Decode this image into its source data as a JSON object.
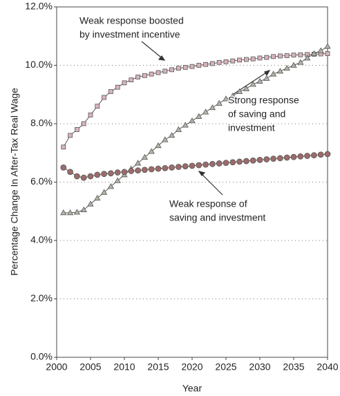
{
  "chart_data": {
    "type": "line",
    "y_label": "Percentage Change In After-Tax Real Wage",
    "x_label": "Year",
    "x": [
      2001,
      2002,
      2003,
      2004,
      2005,
      2006,
      2007,
      2008,
      2009,
      2010,
      2011,
      2012,
      2013,
      2014,
      2015,
      2016,
      2017,
      2018,
      2019,
      2020,
      2021,
      2022,
      2023,
      2024,
      2025,
      2026,
      2027,
      2028,
      2029,
      2030,
      2031,
      2032,
      2033,
      2034,
      2035,
      2036,
      2037,
      2038,
      2039,
      2040
    ],
    "series": [
      {
        "color": "#d9b3bb",
        "marker": "square",
        "values": [
          7.2,
          7.6,
          7.8,
          8.0,
          8.3,
          8.6,
          8.9,
          9.1,
          9.25,
          9.4,
          9.5,
          9.6,
          9.65,
          9.7,
          9.75,
          9.8,
          9.85,
          9.9,
          9.93,
          9.96,
          10.0,
          10.03,
          10.06,
          10.1,
          10.12,
          10.15,
          10.18,
          10.2,
          10.22,
          10.25,
          10.27,
          10.3,
          10.32,
          10.33,
          10.35,
          10.36,
          10.37,
          10.38,
          10.39,
          10.4
        ]
      },
      {
        "color": "#b3b3a8",
        "marker": "triangle",
        "values": [
          4.95,
          4.95,
          4.97,
          5.05,
          5.25,
          5.45,
          5.65,
          5.85,
          6.05,
          6.25,
          6.45,
          6.65,
          6.85,
          7.05,
          7.25,
          7.45,
          7.6,
          7.8,
          7.95,
          8.1,
          8.25,
          8.4,
          8.55,
          8.7,
          8.85,
          8.95,
          9.1,
          9.2,
          9.35,
          9.45,
          9.55,
          9.7,
          9.8,
          9.9,
          10.0,
          10.1,
          10.25,
          10.4,
          10.5,
          10.65
        ]
      },
      {
        "color": "#9c6b6b",
        "marker": "circle",
        "values": [
          6.5,
          6.35,
          6.2,
          6.15,
          6.2,
          6.25,
          6.28,
          6.3,
          6.33,
          6.35,
          6.38,
          6.4,
          6.42,
          6.44,
          6.46,
          6.48,
          6.5,
          6.52,
          6.54,
          6.56,
          6.58,
          6.6,
          6.62,
          6.64,
          6.66,
          6.68,
          6.7,
          6.72,
          6.74,
          6.76,
          6.78,
          6.8,
          6.82,
          6.84,
          6.86,
          6.88,
          6.9,
          6.92,
          6.94,
          6.96
        ]
      }
    ],
    "annotations": [
      {
        "lines": [
          "Weak response boosted",
          "by investment incentive"
        ]
      },
      {
        "lines": [
          "Strong response",
          "of saving and",
          "investment"
        ]
      },
      {
        "lines": [
          "Weak response of",
          "saving and investment"
        ]
      }
    ],
    "xlim": [
      2000,
      2040
    ],
    "xticks": [
      2000,
      2005,
      2010,
      2015,
      2020,
      2025,
      2030,
      2035,
      2040
    ],
    "ylim": [
      0,
      12
    ],
    "yticks": [
      {
        "value": 0,
        "label": "0.0%"
      },
      {
        "value": 2,
        "label": "2.0%"
      },
      {
        "value": 4,
        "label": "4.0%"
      },
      {
        "value": 6,
        "label": "6.0%"
      },
      {
        "value": 8,
        "label": "8.0%"
      },
      {
        "value": 10,
        "label": "10.0%"
      },
      {
        "value": 12,
        "label": "12.0%"
      }
    ],
    "grid": true
  }
}
